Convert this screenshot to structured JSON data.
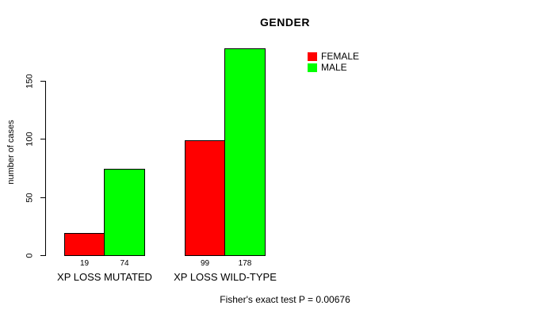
{
  "page": {
    "background_color": "#ffffff",
    "text_color": "#000000"
  },
  "chart_data": {
    "type": "bar",
    "title": "GENDER",
    "ylabel": "number of cases",
    "xlabel": "",
    "categories": [
      "XP LOSS MUTATED",
      "XP LOSS WILD-TYPE"
    ],
    "series": [
      {
        "name": "FEMALE",
        "color": "#ff0000",
        "values": [
          19,
          99
        ]
      },
      {
        "name": "MALE",
        "color": "#00ff00",
        "values": [
          74,
          178
        ]
      }
    ],
    "bar_value_labels": [
      [
        "19",
        "99"
      ],
      [
        "74",
        "178"
      ]
    ],
    "yticks": [
      0,
      50,
      100,
      150
    ],
    "ylim": [
      0,
      185
    ],
    "grid": false,
    "bar_border_color": "#000000",
    "legend_position": "top-right",
    "annotation": "Fisher's exact test P = 0.00676"
  }
}
